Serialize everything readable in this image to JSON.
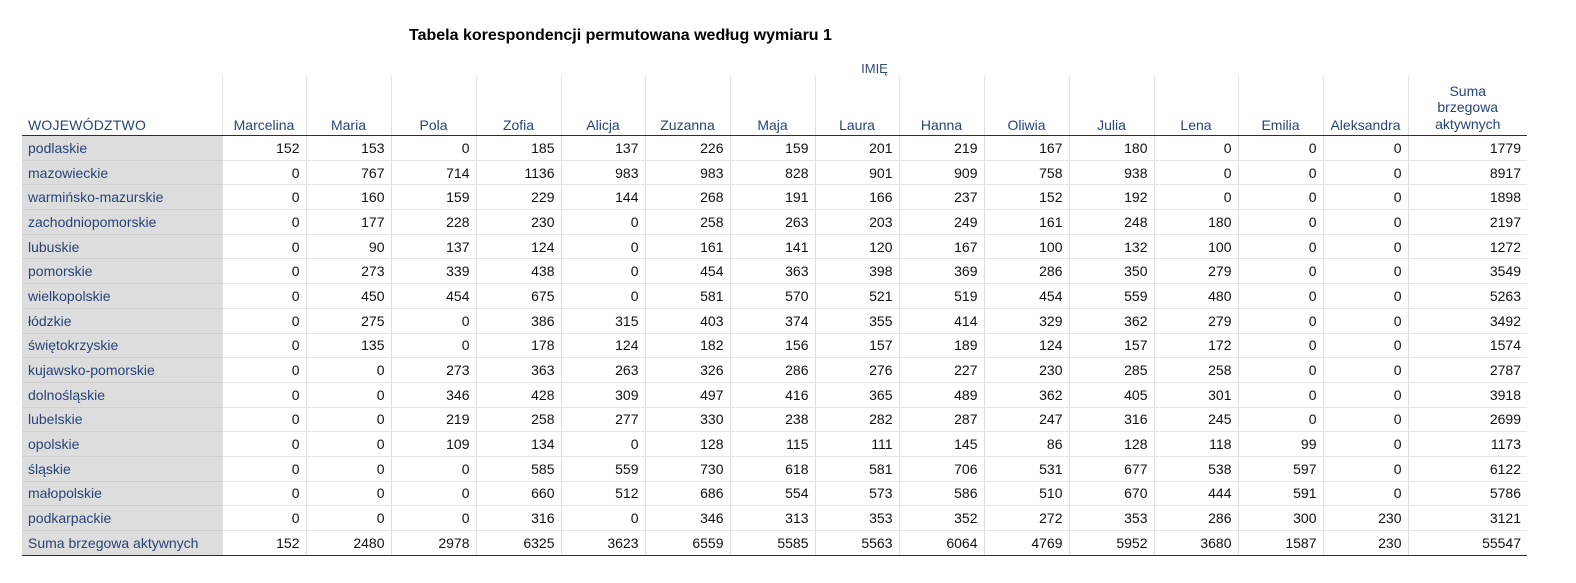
{
  "title": "Tabela korespondencji permutowana według wymiaru 1",
  "column_group_label": "IMIĘ",
  "row_header_label": "WOJEWÓDZTWO",
  "columns": [
    "Marcelina",
    "Maria",
    "Pola",
    "Zofia",
    "Alicja",
    "Zuzanna",
    "Maja",
    "Laura",
    "Hanna",
    "Oliwia",
    "Julia",
    "Lena",
    "Emilia",
    "Aleksandra"
  ],
  "margin_column_label_lines": [
    "Suma",
    "brzegowa",
    "aktywnych"
  ],
  "rows": [
    {
      "label": "podlaskie",
      "values": [
        "152",
        "153",
        "0",
        "185",
        "137",
        "226",
        "159",
        "201",
        "219",
        "167",
        "180",
        "0",
        "0",
        "0",
        "1779"
      ]
    },
    {
      "label": "mazowieckie",
      "values": [
        "0",
        "767",
        "714",
        "1136",
        "983",
        "983",
        "828",
        "901",
        "909",
        "758",
        "938",
        "0",
        "0",
        "0",
        "8917"
      ]
    },
    {
      "label": "warmińsko-mazurskie",
      "values": [
        "0",
        "160",
        "159",
        "229",
        "144",
        "268",
        "191",
        "166",
        "237",
        "152",
        "192",
        "0",
        "0",
        "0",
        "1898"
      ]
    },
    {
      "label": "zachodniopomorskie",
      "values": [
        "0",
        "177",
        "228",
        "230",
        "0",
        "258",
        "263",
        "203",
        "249",
        "161",
        "248",
        "180",
        "0",
        "0",
        "2197"
      ]
    },
    {
      "label": "lubuskie",
      "values": [
        "0",
        "90",
        "137",
        "124",
        "0",
        "161",
        "141",
        "120",
        "167",
        "100",
        "132",
        "100",
        "0",
        "0",
        "1272"
      ]
    },
    {
      "label": "pomorskie",
      "values": [
        "0",
        "273",
        "339",
        "438",
        "0",
        "454",
        "363",
        "398",
        "369",
        "286",
        "350",
        "279",
        "0",
        "0",
        "3549"
      ]
    },
    {
      "label": "wielkopolskie",
      "values": [
        "0",
        "450",
        "454",
        "675",
        "0",
        "581",
        "570",
        "521",
        "519",
        "454",
        "559",
        "480",
        "0",
        "0",
        "5263"
      ]
    },
    {
      "label": "łódzkie",
      "values": [
        "0",
        "275",
        "0",
        "386",
        "315",
        "403",
        "374",
        "355",
        "414",
        "329",
        "362",
        "279",
        "0",
        "0",
        "3492"
      ]
    },
    {
      "label": "świętokrzyskie",
      "values": [
        "0",
        "135",
        "0",
        "178",
        "124",
        "182",
        "156",
        "157",
        "189",
        "124",
        "157",
        "172",
        "0",
        "0",
        "1574"
      ]
    },
    {
      "label": "kujawsko-pomorskie",
      "values": [
        "0",
        "0",
        "273",
        "363",
        "263",
        "326",
        "286",
        "276",
        "227",
        "230",
        "285",
        "258",
        "0",
        "0",
        "2787"
      ]
    },
    {
      "label": "dolnośląskie",
      "values": [
        "0",
        "0",
        "346",
        "428",
        "309",
        "497",
        "416",
        "365",
        "489",
        "362",
        "405",
        "301",
        "0",
        "0",
        "3918"
      ]
    },
    {
      "label": "lubelskie",
      "values": [
        "0",
        "0",
        "219",
        "258",
        "277",
        "330",
        "238",
        "282",
        "287",
        "247",
        "316",
        "245",
        "0",
        "0",
        "2699"
      ]
    },
    {
      "label": "opolskie",
      "values": [
        "0",
        "0",
        "109",
        "134",
        "0",
        "128",
        "115",
        "111",
        "145",
        "86",
        "128",
        "118",
        "99",
        "0",
        "1173"
      ]
    },
    {
      "label": "śląskie",
      "values": [
        "0",
        "0",
        "0",
        "585",
        "559",
        "730",
        "618",
        "581",
        "706",
        "531",
        "677",
        "538",
        "597",
        "0",
        "6122"
      ]
    },
    {
      "label": "małopolskie",
      "values": [
        "0",
        "0",
        "0",
        "660",
        "512",
        "686",
        "554",
        "573",
        "586",
        "510",
        "670",
        "444",
        "591",
        "0",
        "5786"
      ]
    },
    {
      "label": "podkarpackie",
      "values": [
        "0",
        "0",
        "0",
        "316",
        "0",
        "346",
        "313",
        "353",
        "352",
        "272",
        "353",
        "286",
        "300",
        "230",
        "3121"
      ]
    }
  ],
  "total_row": {
    "label": "Suma brzegowa aktywnych",
    "values": [
      "152",
      "2480",
      "2978",
      "6325",
      "3623",
      "6559",
      "5585",
      "5563",
      "6064",
      "4769",
      "5952",
      "3680",
      "1587",
      "230",
      "55547"
    ]
  }
}
